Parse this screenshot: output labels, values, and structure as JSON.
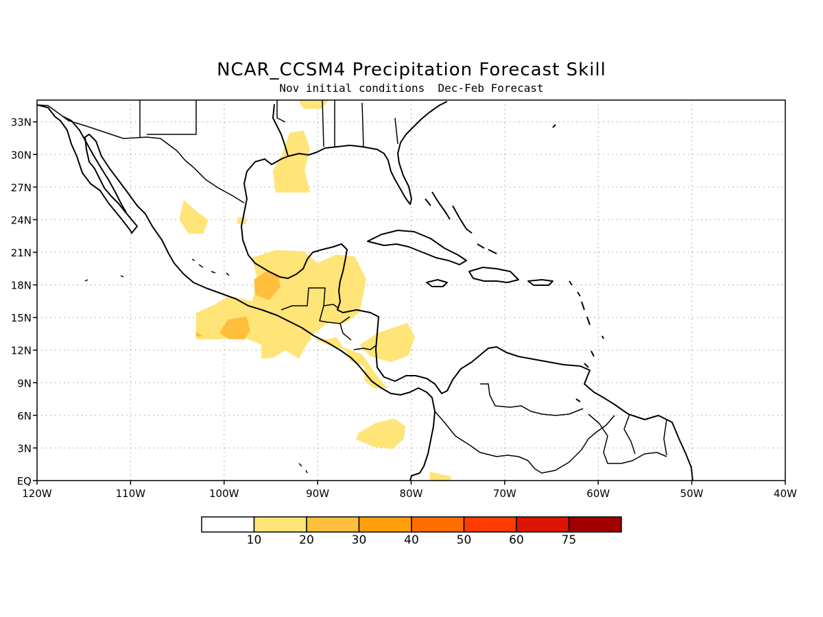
{
  "figure": {
    "title": "NCAR_CCSM4 Precipitation Forecast Skill",
    "subtitle": "Nov initial conditions  Dec-Feb Forecast"
  },
  "map": {
    "lon_range": [
      -120,
      -40
    ],
    "lat_range": [
      0,
      35
    ],
    "lon_ticks": [
      {
        "value": -120,
        "label": "120W"
      },
      {
        "value": -110,
        "label": "110W"
      },
      {
        "value": -100,
        "label": "100W"
      },
      {
        "value": -90,
        "label": "90W"
      },
      {
        "value": -80,
        "label": "80W"
      },
      {
        "value": -70,
        "label": "70W"
      },
      {
        "value": -60,
        "label": "60W"
      },
      {
        "value": -50,
        "label": "50W"
      },
      {
        "value": -40,
        "label": "40W"
      }
    ],
    "lat_ticks": [
      {
        "value": 0,
        "label": "EQ"
      },
      {
        "value": 3,
        "label": "3N"
      },
      {
        "value": 6,
        "label": "6N"
      },
      {
        "value": 9,
        "label": "9N"
      },
      {
        "value": 12,
        "label": "12N"
      },
      {
        "value": 15,
        "label": "15N"
      },
      {
        "value": 18,
        "label": "18N"
      },
      {
        "value": 21,
        "label": "21N"
      },
      {
        "value": 24,
        "label": "24N"
      },
      {
        "value": 27,
        "label": "27N"
      },
      {
        "value": 30,
        "label": "30N"
      },
      {
        "value": 33,
        "label": "33N"
      }
    ],
    "grid": true,
    "skill_regions": [
      {
        "level": 1,
        "points": [
          [
            -93,
            32
          ],
          [
            -91.5,
            32.2
          ],
          [
            -90.8,
            30.5
          ],
          [
            -91.4,
            28.5
          ],
          [
            -90.8,
            26.5
          ],
          [
            -94.5,
            26.5
          ],
          [
            -94.8,
            28.5
          ],
          [
            -93.8,
            30
          ]
        ]
      },
      {
        "level": 1,
        "points": [
          [
            -104.3,
            25.8
          ],
          [
            -103,
            24.8
          ],
          [
            -101.7,
            24
          ],
          [
            -102.2,
            22.7
          ],
          [
            -103.8,
            22.7
          ],
          [
            -104.8,
            24
          ]
        ]
      },
      {
        "level": 1,
        "points": [
          [
            -98.6,
            24.2
          ],
          [
            -97.7,
            24.2
          ],
          [
            -97.6,
            23.6
          ],
          [
            -98.6,
            23.6
          ]
        ]
      },
      {
        "level": 1,
        "points": [
          [
            -97,
            20.5
          ],
          [
            -94.5,
            21.2
          ],
          [
            -91.5,
            21.1
          ],
          [
            -90,
            20
          ],
          [
            -88,
            20.8
          ],
          [
            -86,
            20.6
          ],
          [
            -84.8,
            18.5
          ],
          [
            -85.5,
            15.5
          ],
          [
            -87,
            14.5
          ],
          [
            -89,
            14.5
          ],
          [
            -90.8,
            13.2
          ],
          [
            -89,
            12.5
          ],
          [
            -87,
            12
          ],
          [
            -86.5,
            11
          ],
          [
            -85,
            10.5
          ],
          [
            -85,
            9.2
          ],
          [
            -84,
            8.5
          ],
          [
            -82.5,
            8.5
          ],
          [
            -83.8,
            9.8
          ],
          [
            -85.2,
            11.6
          ],
          [
            -87.3,
            12.3
          ],
          [
            -88,
            13.2
          ],
          [
            -89,
            13
          ],
          [
            -90.6,
            13.1
          ],
          [
            -91.2,
            12.5
          ],
          [
            -92,
            11.2
          ],
          [
            -93.5,
            12
          ],
          [
            -94.7,
            11.3
          ],
          [
            -96,
            11.2
          ],
          [
            -96,
            12.5
          ],
          [
            -98,
            13.2
          ],
          [
            -100.5,
            13
          ],
          [
            -103,
            13
          ],
          [
            -103,
            15.4
          ],
          [
            -101,
            16.2
          ],
          [
            -99.5,
            17
          ],
          [
            -97,
            16.5
          ],
          [
            -96.4,
            18.2
          ]
        ]
      },
      {
        "level": 1,
        "points": [
          [
            -85.5,
            12.5
          ],
          [
            -83.5,
            13.6
          ],
          [
            -80.4,
            14.5
          ],
          [
            -79.6,
            13.2
          ],
          [
            -80.3,
            11.5
          ],
          [
            -82.2,
            10.9
          ],
          [
            -84.3,
            11.4
          ],
          [
            -85.2,
            12.1
          ]
        ]
      },
      {
        "level": 1,
        "points": [
          [
            -85.6,
            4.4
          ],
          [
            -83.8,
            5.3
          ],
          [
            -81.8,
            5.7
          ],
          [
            -80.6,
            5
          ],
          [
            -80.8,
            3.8
          ],
          [
            -82,
            2.9
          ],
          [
            -84,
            3.1
          ],
          [
            -85.9,
            3.8
          ]
        ]
      },
      {
        "level": 1,
        "points": [
          [
            -78,
            0.8
          ],
          [
            -75.8,
            0.4
          ],
          [
            -75.7,
            0
          ],
          [
            -78,
            0
          ]
        ]
      },
      {
        "level": 1,
        "points": [
          [
            -92.1,
            35
          ],
          [
            -88.8,
            35
          ],
          [
            -89.6,
            34.2
          ],
          [
            -91.5,
            34.2
          ]
        ]
      },
      {
        "level": 2,
        "points": [
          [
            -96.8,
            18.5
          ],
          [
            -95.4,
            19.3
          ],
          [
            -94.2,
            19
          ],
          [
            -94,
            17.8
          ],
          [
            -95.2,
            16.6
          ],
          [
            -96.7,
            17.1
          ]
        ]
      },
      {
        "level": 2,
        "points": [
          [
            -99.6,
            14.8
          ],
          [
            -97.6,
            15.1
          ],
          [
            -97.2,
            13.8
          ],
          [
            -97.8,
            13
          ],
          [
            -99.5,
            13
          ],
          [
            -100.5,
            13.6
          ]
        ]
      },
      {
        "level": 2,
        "points": [
          [
            -103,
            13.7
          ],
          [
            -102.3,
            13.3
          ],
          [
            -103,
            13.2
          ]
        ]
      }
    ]
  },
  "colorbar": {
    "levels": [
      "10",
      "20",
      "30",
      "40",
      "50",
      "60",
      "75"
    ],
    "colors": [
      "#ffffff",
      "#ffe478",
      "#ffbe3c",
      "#ffa00a",
      "#ff6e00",
      "#ff3c00",
      "#dc1400",
      "#a00000"
    ]
  }
}
